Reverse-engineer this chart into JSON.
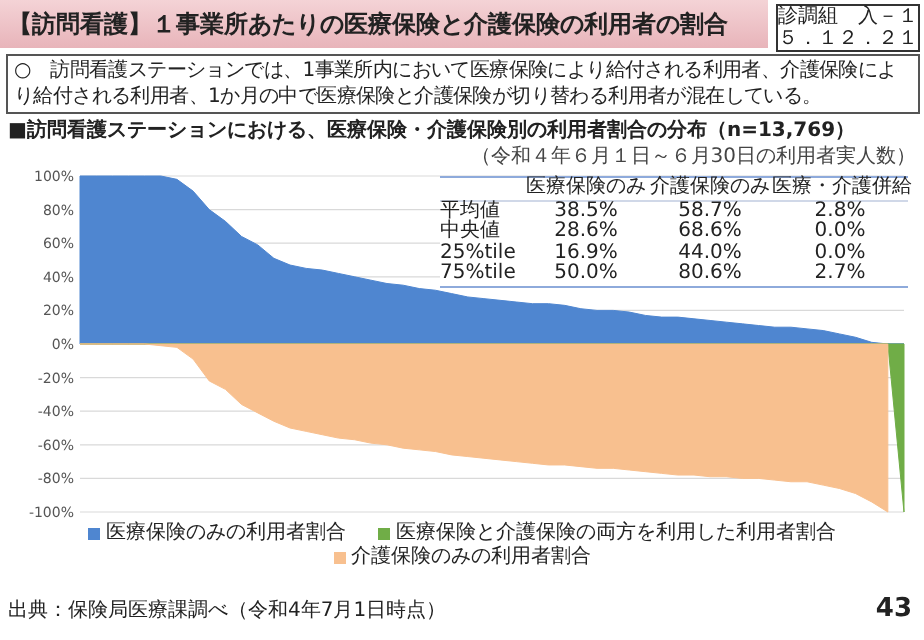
{
  "chart_data": {
    "type": "area",
    "title": "【訪問看護】１事業所あたりの医療保険と介護保険の利用者の割合",
    "subtitle": "■訪問看護ステーションにおける、医療保険・介護保険別の利用者割合の分布（n=13,769）",
    "annotations": [
      "○　訪問看護ステーションでは、1事業所内において医療保険により給付される利用者、介護保険により給付される利用者、1か月の中で医療保険と介護保険が切り替わる利用者が混在している。",
      "（令和４年６月１日～６月30日の利用者実人数）",
      "診調組　入－１",
      "５．１２．２１",
      "43",
      "出典：保険局医療課調べ（令和4年7月1日時点）",
      "医療保険のみ",
      "介護保険のみ",
      "医療・介護併給",
      "平均値",
      "38.5%",
      "58.7%",
      "2.8%",
      "中央値",
      "28.6%",
      "68.6%",
      "0.0%",
      "25%tile",
      "16.9%",
      "44.0%",
      "0.0%",
      "75%tile",
      "50.0%",
      "80.6%",
      "2.7%"
    ],
    "categories": [
      null,
      null,
      null,
      null,
      null,
      null,
      null,
      null,
      null,
      null,
      null,
      null,
      null,
      null,
      null,
      null,
      null,
      null,
      null,
      null,
      null,
      null,
      null,
      null,
      null,
      null,
      null,
      null,
      null,
      null,
      null,
      null,
      null,
      null,
      null,
      null,
      null,
      null,
      null,
      null,
      null,
      null,
      null,
      null,
      null,
      null,
      null,
      null,
      null,
      null,
      null,
      null
    ],
    "series": [
      {
        "name": "医療保険のみの利用者割合",
        "color": "#4f86d0",
        "values": [
          100,
          100,
          100,
          100,
          100,
          100,
          98,
          91,
          80,
          73,
          64,
          59,
          51,
          47,
          45,
          44,
          42,
          40,
          38,
          36,
          35,
          33,
          32,
          30,
          28,
          27,
          26,
          25,
          24,
          24,
          23,
          21,
          20,
          20,
          19,
          17,
          16,
          16,
          15,
          14,
          13,
          12,
          11,
          10,
          10,
          9,
          8,
          6,
          4,
          1,
          0,
          0
        ]
      },
      {
        "name": "医療保険と介護保険の両方を利用した利用者割合",
        "color": "#70ad47",
        "values": [
          0,
          0,
          0,
          0,
          0,
          0,
          0,
          0,
          0,
          0,
          0,
          0,
          0,
          0,
          0,
          0,
          0,
          0,
          0,
          0,
          0,
          0,
          0,
          0,
          0,
          0,
          0,
          0,
          0,
          0,
          0,
          0,
          0,
          0,
          0,
          0,
          0,
          0,
          0,
          0,
          0,
          0,
          0,
          0,
          0,
          0,
          0,
          0,
          0,
          0,
          0,
          -100
        ]
      },
      {
        "name": "介護保険のみの利用者割合",
        "color": "#f8c08f",
        "values": [
          0,
          0,
          0,
          0,
          0,
          -1,
          -2,
          -9,
          -22,
          -27,
          -36,
          -41,
          -46,
          -50,
          -52,
          -54,
          -56,
          -57,
          -59,
          -60,
          -62,
          -63,
          -64,
          -66,
          -67,
          -68,
          -69,
          -70,
          -71,
          -72,
          -72,
          -73,
          -74,
          -74,
          -75,
          -76,
          -77,
          -78,
          -78,
          -79,
          -79,
          -80,
          -80,
          -81,
          -82,
          -82,
          -84,
          -86,
          -89,
          -94,
          -100,
          null
        ]
      }
    ],
    "ylim": [
      -100,
      100
    ],
    "yticks": [
      {
        "value": 100,
        "label": "100%"
      },
      {
        "value": 80,
        "label": "80%"
      },
      {
        "value": 60,
        "label": "60%"
      },
      {
        "value": 40,
        "label": "40%"
      },
      {
        "value": 20,
        "label": "20%"
      },
      {
        "value": 0,
        "label": "0%"
      },
      {
        "value": -20,
        "label": "-20%"
      },
      {
        "value": -40,
        "label": "-40%"
      },
      {
        "value": -60,
        "label": "-60%"
      },
      {
        "value": -80,
        "label": "-80%"
      },
      {
        "value": -100,
        "label": "-100%"
      }
    ],
    "grid": "y",
    "legend": "bottom"
  }
}
